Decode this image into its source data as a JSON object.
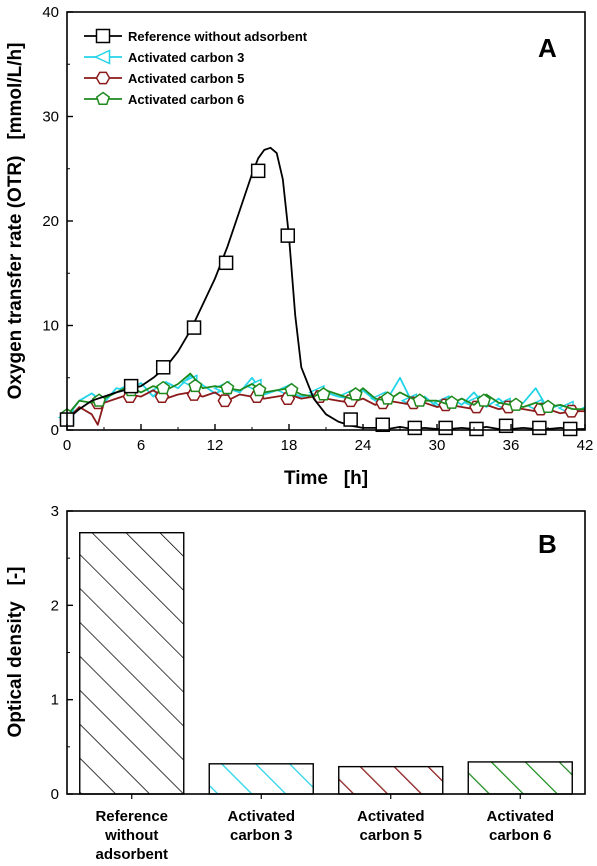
{
  "chart_data": [
    {
      "panel": "A",
      "type": "line",
      "xlabel": "Time   [h]",
      "ylabel": "Oxygen transfer rate (OTR)   [mmol/L/h]",
      "xlim": [
        0,
        42
      ],
      "ylim": [
        0,
        40
      ],
      "xticks": [
        "0",
        "6",
        "12",
        "18",
        "24",
        "30",
        "36",
        "42"
      ],
      "yticks": [
        "0",
        "10",
        "20",
        "30",
        "40"
      ],
      "legend_position": "top-left",
      "series": [
        {
          "name": "Reference without adsorbent",
          "color": "#000000",
          "marker": "square",
          "x": [
            0,
            1,
            2,
            3,
            4,
            5,
            6,
            7,
            8,
            9,
            10,
            11,
            12,
            13,
            14,
            15,
            15.5,
            16,
            16.5,
            17,
            17.5,
            18,
            18.5,
            19,
            20,
            21,
            22,
            23,
            24,
            25,
            26,
            27,
            28,
            29,
            30,
            31,
            32,
            33,
            34,
            35,
            36,
            37,
            38,
            39,
            40,
            41,
            42
          ],
          "y": [
            1.0,
            2.0,
            2.8,
            3.2,
            3.6,
            3.9,
            4.2,
            5.0,
            6.0,
            7.5,
            9.5,
            12.0,
            14.5,
            17.5,
            21.0,
            24.5,
            26.0,
            26.8,
            27.0,
            26.5,
            24.0,
            18.5,
            11.0,
            6.0,
            3.0,
            1.5,
            0.8,
            0.4,
            0.2,
            0.2,
            0.1,
            0.3,
            0.1,
            0.2,
            0.1,
            0.1,
            0.2,
            0.1,
            0.3,
            0.1,
            0.1,
            0.2,
            0.1,
            0.1,
            0.2,
            0.1,
            0.1
          ],
          "marker_x": [
            0,
            5.2,
            7.8,
            10.3,
            12.9,
            15.5,
            17.9,
            23.0,
            25.6,
            28.2,
            30.7,
            33.2,
            35.6,
            38.3,
            40.8
          ],
          "marker_y": [
            1.0,
            4.2,
            6.0,
            9.8,
            16.0,
            24.8,
            18.6,
            1.0,
            0.5,
            0.2,
            0.2,
            0.1,
            0.4,
            0.2,
            0.1
          ]
        },
        {
          "name": "Activated carbon 3",
          "color": "#22d4e8",
          "marker": "triangle-left",
          "x": [
            0,
            1,
            2,
            3,
            4,
            5,
            6,
            7,
            8,
            9,
            10,
            11,
            12,
            13,
            14,
            15,
            16,
            17,
            18,
            19,
            20,
            21,
            22,
            23,
            24,
            25,
            26,
            27,
            28,
            29,
            30,
            31,
            32,
            33,
            34,
            35,
            36,
            37,
            38,
            39,
            40,
            41,
            42
          ],
          "y": [
            1.2,
            2.8,
            3.5,
            2.6,
            4.0,
            3.8,
            4.5,
            3.2,
            4.6,
            4.0,
            5.2,
            4.3,
            3.5,
            4.0,
            3.6,
            5.0,
            3.4,
            3.8,
            3.6,
            3.2,
            3.4,
            3.6,
            3.2,
            3.0,
            3.8,
            2.8,
            3.0,
            5.0,
            2.6,
            3.2,
            2.2,
            3.2,
            2.4,
            3.6,
            2.2,
            3.0,
            2.0,
            2.6,
            4.0,
            2.0,
            2.4,
            1.6,
            2.2
          ],
          "marker_x": [
            0,
            5,
            7.5,
            10,
            12.6,
            15.2,
            17.7,
            20.3,
            22.8,
            25.3,
            27.8,
            30.4,
            32.9,
            35.4,
            38,
            40.5
          ],
          "marker_y": [
            1.2,
            4.0,
            3.8,
            4.6,
            4.0,
            4.2,
            3.8,
            3.6,
            3.3,
            3.0,
            2.8,
            2.6,
            2.6,
            2.4,
            2.3,
            2.1
          ]
        },
        {
          "name": "Activated carbon 5",
          "color": "#8b1a1a",
          "marker": "hexagon",
          "x": [
            0,
            1,
            2,
            2.5,
            3,
            4,
            5,
            6,
            7,
            8,
            9,
            10,
            11,
            12,
            13,
            14,
            15,
            16,
            17,
            18,
            19,
            20,
            21,
            22,
            23,
            24,
            25,
            26,
            27,
            28,
            29,
            30,
            31,
            32,
            33,
            34,
            35,
            36,
            37,
            38,
            39,
            40,
            41,
            42
          ],
          "y": [
            1.0,
            2.2,
            1.5,
            0.5,
            2.6,
            3.0,
            3.4,
            3.2,
            3.8,
            3.0,
            3.4,
            3.6,
            3.2,
            3.6,
            2.8,
            3.4,
            3.2,
            3.0,
            3.2,
            3.4,
            3.0,
            3.2,
            3.0,
            2.8,
            2.6,
            3.0,
            2.4,
            2.8,
            2.6,
            2.4,
            2.6,
            2.2,
            2.4,
            2.2,
            2.0,
            2.4,
            2.0,
            2.2,
            2.0,
            1.8,
            2.0,
            1.6,
            1.8,
            1.8
          ],
          "marker_x": [
            0,
            2.5,
            5.1,
            7.7,
            10.3,
            12.8,
            15.4,
            17.9,
            20.5,
            23,
            25.6,
            28.1,
            30.7,
            33.2,
            35.8,
            38.4,
            40.9
          ],
          "marker_y": [
            1.0,
            2.6,
            3.2,
            3.2,
            3.4,
            2.8,
            3.2,
            3.0,
            3.2,
            2.8,
            2.6,
            2.6,
            2.4,
            2.2,
            2.2,
            2.0,
            1.8
          ]
        },
        {
          "name": "Activated carbon 6",
          "color": "#1e8a1e",
          "marker": "pentagon",
          "x": [
            0,
            1,
            2,
            3,
            4,
            5,
            6,
            7,
            8,
            9,
            10,
            11,
            12,
            13,
            14,
            15,
            16,
            17,
            18,
            19,
            20,
            21,
            22,
            23,
            24,
            25,
            26,
            27,
            28,
            29,
            30,
            31,
            32,
            33,
            34,
            35,
            36,
            37,
            38,
            39,
            40,
            41,
            42
          ],
          "y": [
            1.4,
            2.8,
            2.6,
            3.0,
            3.6,
            4.2,
            3.6,
            4.2,
            3.8,
            4.4,
            5.4,
            4.0,
            4.2,
            4.0,
            3.8,
            4.4,
            3.6,
            3.8,
            4.0,
            3.4,
            3.2,
            3.8,
            3.4,
            3.0,
            4.0,
            3.0,
            2.8,
            3.6,
            3.0,
            2.8,
            2.8,
            2.4,
            3.0,
            2.4,
            3.4,
            2.6,
            2.4,
            2.2,
            2.6,
            2.2,
            2.4,
            2.0,
            2.0
          ],
          "marker_x": [
            0,
            2.6,
            5.2,
            7.8,
            10.4,
            13,
            15.6,
            18.2,
            20.8,
            23.4,
            26,
            28.6,
            31.2,
            33.8,
            36.4,
            39
          ],
          "marker_y": [
            1.4,
            2.8,
            3.8,
            4.0,
            4.2,
            4.0,
            3.8,
            3.8,
            3.4,
            3.4,
            3.0,
            2.8,
            2.6,
            2.8,
            2.4,
            2.2
          ]
        }
      ]
    },
    {
      "panel": "B",
      "type": "bar",
      "ylabel": "Optical density   [-]",
      "ylim": [
        0,
        3
      ],
      "yticks": [
        "0",
        "1",
        "2",
        "3"
      ],
      "categories": [
        "Reference\nwithout\nadsorbent",
        "Activated\ncarbon 3",
        "Activated\ncarbon 5",
        "Activated\ncarbon 6"
      ],
      "values": [
        2.77,
        0.32,
        0.29,
        0.34
      ],
      "bar_colors": [
        "#000000",
        "#22d4e8",
        "#8b1a1a",
        "#1e8a1e"
      ],
      "fill_pattern": "diagonal-hatch"
    }
  ]
}
